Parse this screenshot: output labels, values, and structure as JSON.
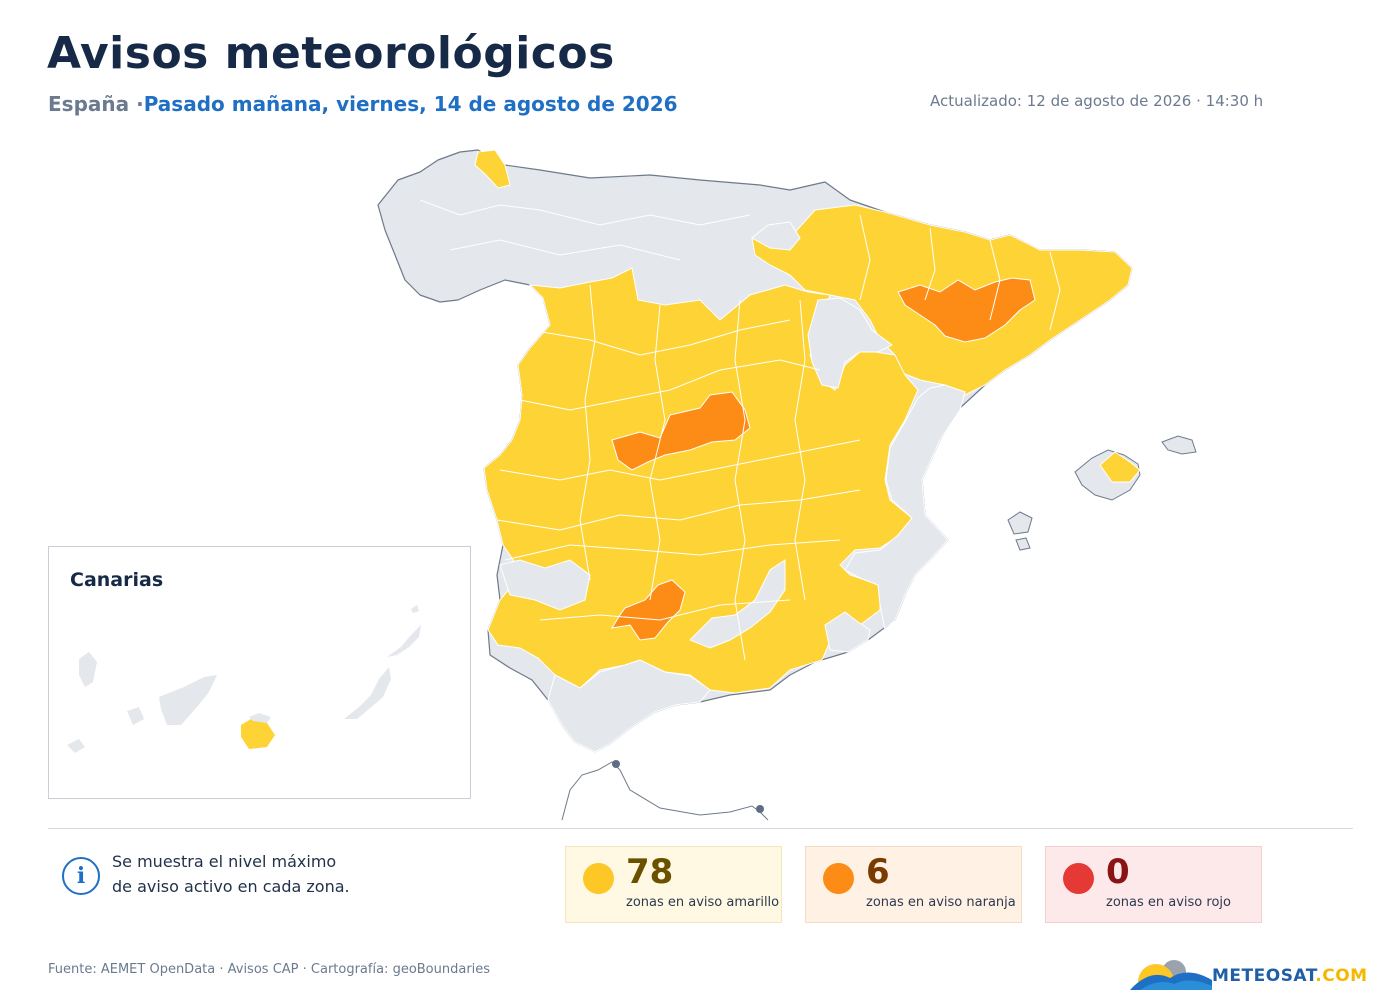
{
  "header": {
    "title": "Avisos meteorológicos",
    "country": "España",
    "separator": " ·",
    "date": "Pasado mañana, viernes, 14 de agosto de 2026",
    "updated": "Actualizado: 12 de agosto de 2026 · 14:30 h"
  },
  "legend_colors": {
    "none": "#e4e7ec",
    "yellow": "#fdd335",
    "orange": "#fd8c16",
    "red": "#e53935"
  },
  "inset": {
    "title": "Canarias"
  },
  "info": {
    "icon": "info-icon",
    "line1": "Se muestra el nivel máximo",
    "line2": "de aviso activo en cada zona."
  },
  "stats": [
    {
      "count": "78",
      "label": "zonas en aviso amarillo",
      "dot": "#fdc725",
      "num_color": "#6b5000",
      "bg": "#fff8e3",
      "border": "#f3e6bd"
    },
    {
      "count": "6",
      "label": "zonas en aviso naranja",
      "dot": "#fd8c16",
      "num_color": "#7a3b00",
      "bg": "#fff1e4",
      "border": "#f4dcc4"
    },
    {
      "count": "0",
      "label": "zonas en aviso rojo",
      "dot": "#e53935",
      "num_color": "#8a1414",
      "bg": "#fde9ea",
      "border": "#f2cfd1"
    }
  ],
  "footer": {
    "source": "Fuente: AEMET OpenData · Avisos CAP · Cartografía: geoBoundaries",
    "brand_main": "METEOSAT",
    "brand_tld": ".COM"
  }
}
